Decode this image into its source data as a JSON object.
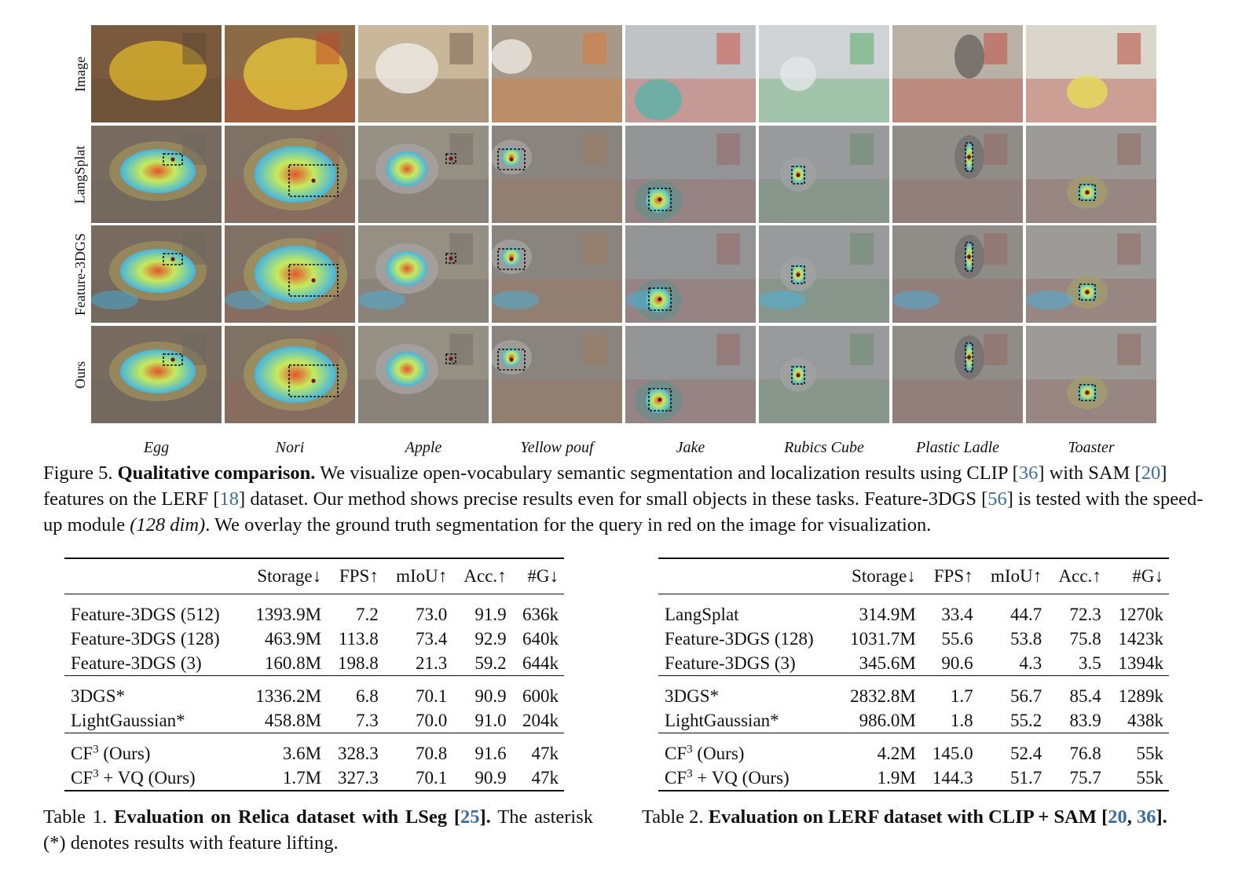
{
  "figure": {
    "row_labels": [
      "Image",
      "LangSplat",
      "Feature-3DGS",
      "Ours"
    ],
    "col_labels": [
      "Egg",
      "Nori",
      "Apple",
      "Yellow pouf",
      "Jake",
      "Rubics Cube",
      "Plastic Ladle",
      "Toaster"
    ]
  },
  "figure_caption": {
    "prefix": "Figure 5. ",
    "bold": "Qualitative comparison.",
    "t1": " We visualize open-vocabulary semantic segmentation and localization results using CLIP [",
    "r1": "36",
    "t2": "] with SAM [",
    "r2": "20",
    "t3": "] features on the LERF [",
    "r3": "18",
    "t4": "] dataset. Our method shows precise results even for small objects in these tasks. Feature-3DGS [",
    "r4": "56",
    "t5": "] is tested with the speed-up module ",
    "ital": "(128 dim)",
    "t6": ". We overlay the ground truth segmentation for the query in red on the image for visualization."
  },
  "table1": {
    "headers": [
      "",
      "Storage↓",
      "FPS↑",
      "mIoU↑",
      "Acc.↑",
      "#G↓"
    ],
    "rows": [
      [
        "Feature-3DGS (512)",
        "1393.9M",
        "7.2",
        "73.0",
        "91.9",
        "636k"
      ],
      [
        "Feature-3DGS (128)",
        "463.9M",
        "113.8",
        "73.4",
        "92.9",
        "640k"
      ],
      [
        "Feature-3DGS (3)",
        "160.8M",
        "198.8",
        "21.3",
        "59.2",
        "644k"
      ],
      [
        "3DGS*",
        "1336.2M",
        "6.8",
        "70.1",
        "90.9",
        "600k"
      ],
      [
        "LightGaussian*",
        "458.8M",
        "7.3",
        "70.0",
        "91.0",
        "204k"
      ],
      [
        "CF",
        "3.6M",
        "328.3",
        "70.8",
        "91.6",
        "47k"
      ],
      [
        "CF",
        "1.7M",
        "327.3",
        "70.1",
        "90.9",
        "47k"
      ]
    ],
    "cf_sup": "3",
    "cf_suffix_1": " (Ours)",
    "cf_suffix_2": " + VQ (Ours)",
    "caption_prefix": "Table 1. ",
    "caption_bold": "Evaluation on Relica dataset with LSeg [",
    "caption_ref": "25",
    "caption_bold_end": "].",
    "caption_rest": " The asterisk (*) denotes results with feature lifting."
  },
  "table2": {
    "headers": [
      "",
      "Storage↓",
      "FPS↑",
      "mIoU↑",
      "Acc.↑",
      "#G↓"
    ],
    "rows": [
      [
        "LangSplat",
        "314.9M",
        "33.4",
        "44.7",
        "72.3",
        "1270k"
      ],
      [
        "Feature-3DGS (128)",
        "1031.7M",
        "55.6",
        "53.8",
        "75.8",
        "1423k"
      ],
      [
        "Feature-3DGS (3)",
        "345.6M",
        "90.6",
        "4.3",
        "3.5",
        "1394k"
      ],
      [
        "3DGS*",
        "2832.8M",
        "1.7",
        "56.7",
        "85.4",
        "1289k"
      ],
      [
        "LightGaussian*",
        "986.0M",
        "1.8",
        "55.2",
        "83.9",
        "438k"
      ],
      [
        "CF",
        "4.2M",
        "145.0",
        "52.4",
        "76.8",
        "55k"
      ],
      [
        "CF",
        "1.9M",
        "144.3",
        "51.7",
        "75.7",
        "55k"
      ]
    ],
    "cf_sup": "3",
    "cf_suffix_1": " (Ours)",
    "cf_suffix_2": " + VQ (Ours)",
    "caption_prefix": "Table 2. ",
    "caption_bold": "Evaluation on LERF dataset with CLIP + SAM [",
    "caption_ref1": "20",
    "caption_sep": ", ",
    "caption_ref2": "36",
    "caption_bold_end": "]."
  },
  "colors": {
    "ref": "#3a6ea5",
    "heat_cool": "#3fb7e8",
    "heat_mid": "#c8f05a",
    "heat_hot": "#e8502a",
    "overlay_gray": "#777777"
  }
}
